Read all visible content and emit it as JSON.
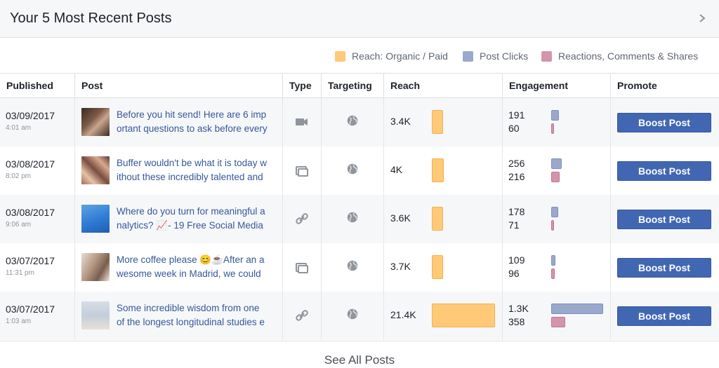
{
  "header": {
    "title": "Your 5 Most Recent Posts",
    "chevron_icon": "chevron-right-icon"
  },
  "legend": [
    {
      "label": "Reach: Organic / Paid",
      "color": "#ffc978"
    },
    {
      "label": "Post Clicks",
      "color": "#9aa8cd"
    },
    {
      "label": "Reactions, Comments & Shares",
      "color": "#d495ac"
    }
  ],
  "columns": [
    "Published",
    "Post",
    "Type",
    "Targeting",
    "Reach",
    "Engagement",
    "Promote"
  ],
  "rows": [
    {
      "date": "03/09/2017",
      "time": "4:01 am",
      "text1": "Before you hit send! Here are 6 imp",
      "text2": "ortant questions to ask before every",
      "type": "video-icon",
      "targeting": "globe-icon",
      "reach": "3.4K",
      "reach_value": 3400,
      "clicks": "191",
      "reactions": "60",
      "boost": "Boost Post"
    },
    {
      "date": "03/08/2017",
      "time": "8:02 pm",
      "text1": "Buffer wouldn't be what it is today w",
      "text2": "ithout these incredibly talented and",
      "type": "album-icon",
      "targeting": "globe-icon",
      "reach": "4K",
      "reach_value": 4000,
      "clicks": "256",
      "reactions": "216",
      "boost": "Boost Post"
    },
    {
      "date": "03/08/2017",
      "time": "9:06 am",
      "text1": "Where do you turn for meaningful a",
      "text2": "nalytics? 📈- 19 Free Social Media",
      "type": "link-icon",
      "targeting": "globe-icon",
      "reach": "3.6K",
      "reach_value": 3600,
      "clicks": "178",
      "reactions": "71",
      "boost": "Boost Post"
    },
    {
      "date": "03/07/2017",
      "time": "11:31 pm",
      "text1": "More coffee please 😊☕After an a",
      "text2": "wesome week in Madrid, we could",
      "type": "album-icon",
      "targeting": "globe-icon",
      "reach": "3.7K",
      "reach_value": 3700,
      "clicks": "109",
      "reactions": "96",
      "boost": "Boost Post"
    },
    {
      "date": "03/07/2017",
      "time": "1:03 am",
      "text1": "Some incredible wisdom from one",
      "text2": "of the longest longitudinal studies e",
      "type": "link-icon",
      "targeting": "globe-icon",
      "reach": "21.4K",
      "reach_value": 21400,
      "clicks": "1.3K",
      "reactions": "358",
      "boost": "Boost Post"
    }
  ],
  "footer": {
    "see_all": "See All Posts"
  }
}
